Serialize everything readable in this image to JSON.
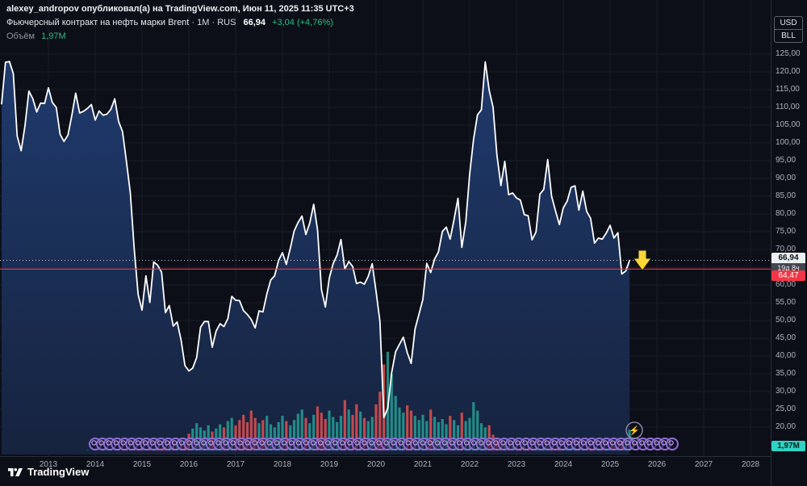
{
  "header": {
    "byline": "alexey_andropov опубликовал(а) на TradingView.com, Июн 11, 2025 11:35 UTC+3",
    "symbol_title": "Фьючерсный контракт на нефть марки Brent",
    "meta": "· 1M · RUS",
    "price": "66,94",
    "change": "+3,04 (+4,76%)",
    "volume_label": "Объём",
    "volume_value": "1,97M"
  },
  "axis_right": {
    "unit_top": "USD",
    "unit_bottom": "BLL",
    "ticks": [
      "125,00",
      "120,00",
      "115,00",
      "110,00",
      "105,00",
      "100,00",
      "95,00",
      "90,00",
      "85,00",
      "80,00",
      "75,00",
      "70,00",
      "65,00",
      "60,00",
      "55,00",
      "50,00",
      "45,00",
      "40,00",
      "35,00",
      "30,00",
      "25,00",
      "20,00"
    ],
    "price_label": "66,94",
    "countdown": "19д 8ч",
    "alert_label": "64,47",
    "volume_tag": "1,97M"
  },
  "axis_time": {
    "years": [
      "2013",
      "2014",
      "2015",
      "2016",
      "2017",
      "2018",
      "2019",
      "2020",
      "2021",
      "2022",
      "2023",
      "2024",
      "2025",
      "2026",
      "2027",
      "2028"
    ]
  },
  "footer": {
    "logo_text": "TradingView"
  },
  "stickers": {
    "purple_circle_count": 80,
    "lightning_glyph": "⚡"
  },
  "colors": {
    "up": "#26a69a",
    "down": "#ef5350",
    "up_text": "#2ebd85",
    "line": "#ffffff",
    "fill_top": "#1f3a6d",
    "fill_bottom": "#16233e",
    "alert": "#f23645",
    "arrow": "#fdd835",
    "accent_purple": "#8f6fd8",
    "volume_tag": "#2fd3c3"
  },
  "chart_data": {
    "type": "area",
    "title": "Фьючерсный контракт на нефть марки Brent",
    "interval": "1M",
    "exchange": "RUS",
    "unit": "USD/BLL",
    "start": "2012-01",
    "last_price": 66.94,
    "alert_level": 64.47,
    "ylim": [
      20,
      125
    ],
    "x_years": [
      2013,
      2014,
      2015,
      2016,
      2017,
      2018,
      2019,
      2020,
      2021,
      2022,
      2023,
      2024,
      2025,
      2026,
      2027,
      2028
    ],
    "prices": [
      111.0,
      122.7,
      122.9,
      119.5,
      101.9,
      97.8,
      104.9,
      114.6,
      112.4,
      108.7,
      111.2,
      111.1,
      115.5,
      111.4,
      110.0,
      102.4,
      100.4,
      102.2,
      107.7,
      114.0,
      108.4,
      108.9,
      109.7,
      110.8,
      106.4,
      109.0,
      107.8,
      108.1,
      109.4,
      112.4,
      106.0,
      103.2,
      94.7,
      85.9,
      70.2,
      57.3,
      52.9,
      62.6,
      55.1,
      66.5,
      65.6,
      63.6,
      52.2,
      54.2,
      48.4,
      49.6,
      44.6,
      37.3,
      35.8,
      36.6,
      39.6,
      48.1,
      49.7,
      49.7,
      42.5,
      47.0,
      49.1,
      48.3,
      50.5,
      56.8,
      55.7,
      55.6,
      52.8,
      51.7,
      50.3,
      47.9,
      52.7,
      52.4,
      57.5,
      61.4,
      62.6,
      66.9,
      69.1,
      65.8,
      70.3,
      75.2,
      77.6,
      79.4,
      74.2,
      77.4,
      82.7,
      75.5,
      58.7,
      53.8,
      61.9,
      66.0,
      68.4,
      72.8,
      64.5,
      66.6,
      65.2,
      60.4,
      60.8,
      60.2,
      62.4,
      66.0,
      58.2,
      49.7,
      22.7,
      25.3,
      35.3,
      41.2,
      43.3,
      45.3,
      40.9,
      37.9,
      47.6,
      51.8,
      55.9,
      66.1,
      63.5,
      67.3,
      69.3,
      75.1,
      76.3,
      72.9,
      78.5,
      84.4,
      70.6,
      77.8,
      91.2,
      101.0,
      107.9,
      109.3,
      122.8,
      114.8,
      110.0,
      96.5,
      88.0,
      94.8,
      85.4,
      85.9,
      84.5,
      83.9,
      79.8,
      79.5,
      72.7,
      74.9,
      85.6,
      86.9,
      95.3,
      85.0,
      80.9,
      77.0,
      81.7,
      83.6,
      87.5,
      87.9,
      81.1,
      86.4,
      80.7,
      78.8,
      71.8,
      73.2,
      72.9,
      74.6,
      76.8,
      73.2,
      74.7,
      63.1,
      63.9,
      66.94
    ],
    "volumes": [
      0.02,
      0.02,
      0.03,
      0.02,
      0.03,
      0.02,
      0.02,
      0.03,
      0.02,
      0.03,
      0.02,
      0.03,
      0.03,
      0.02,
      0.03,
      0.03,
      0.02,
      0.03,
      0.03,
      0.02,
      0.03,
      0.03,
      0.04,
      0.03,
      0.04,
      0.03,
      0.04,
      0.04,
      0.05,
      0.04,
      0.05,
      0.04,
      0.05,
      0.06,
      0.07,
      0.08,
      0.1,
      0.1,
      0.15,
      0.2,
      0.2,
      0.25,
      0.3,
      0.4,
      0.5,
      0.6,
      0.7,
      0.9,
      1.6,
      2.1,
      2.6,
      2.2,
      1.9,
      2.4,
      1.8,
      2.1,
      2.5,
      2.2,
      2.8,
      3.1,
      2.4,
      2.9,
      3.4,
      2.7,
      3.8,
      3.1,
      2.6,
      2.9,
      3.3,
      2.5,
      2.2,
      2.7,
      3.3,
      2.8,
      2.4,
      2.9,
      3.5,
      3.9,
      3.1,
      2.6,
      3.4,
      4.2,
      3.6,
      3.0,
      3.8,
      3.2,
      2.7,
      3.3,
      4.8,
      3.9,
      3.4,
      4.4,
      3.7,
      3.1,
      2.8,
      3.2,
      4.4,
      5.6,
      8.2,
      9.4,
      7.3,
      5.2,
      4.1,
      3.6,
      4.3,
      3.8,
      3.3,
      2.9,
      3.4,
      2.8,
      3.9,
      3.2,
      2.7,
      3.0,
      2.5,
      3.3,
      2.9,
      2.4,
      3.6,
      2.8,
      3.1,
      4.6,
      3.8,
      2.6,
      2.2,
      2.4,
      1.5,
      1.1,
      0.8,
      0.6,
      0.5,
      0.4,
      0.3,
      0.25,
      0.3,
      0.25,
      0.3,
      0.25,
      0.2,
      0.25,
      0.3,
      0.25,
      0.2,
      0.25,
      0.2,
      0.25,
      0.3,
      0.25,
      0.2,
      0.25,
      0.2,
      0.25,
      0.3,
      0.25,
      0.2,
      0.25,
      0.3,
      0.4,
      0.5,
      0.9,
      1.2,
      1.97
    ]
  }
}
